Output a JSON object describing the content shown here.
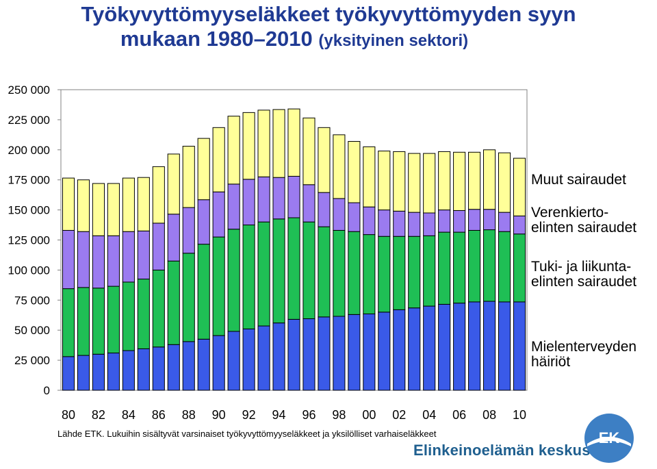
{
  "title": {
    "line1": "Työkyvyttömyyseläkkeet työkyvyttömyyden syyn",
    "line2_main": "mukaan 1980–2010",
    "line2_sub": "(yksityinen sektori)"
  },
  "colors": {
    "mental": "#3a5ae8",
    "musculo": "#1fbf55",
    "circulatory": "#9b7bf0",
    "other": "#ffff99",
    "title": "#1f3a93"
  },
  "chart_data": {
    "type": "bar",
    "stacked": true,
    "categories": [
      "80",
      "81",
      "82",
      "83",
      "84",
      "85",
      "86",
      "87",
      "88",
      "89",
      "90",
      "91",
      "92",
      "93",
      "94",
      "95",
      "96",
      "97",
      "98",
      "99",
      "00",
      "01",
      "02",
      "03",
      "04",
      "05",
      "06",
      "07",
      "08",
      "09",
      "10"
    ],
    "x_tick_labels": [
      "80",
      "82",
      "84",
      "86",
      "88",
      "90",
      "92",
      "94",
      "96",
      "98",
      "00",
      "02",
      "04",
      "06",
      "08",
      "10"
    ],
    "y_tick_labels": [
      "0",
      "25 000",
      "50 000",
      "75 000",
      "100 000",
      "125 000",
      "150 000",
      "175 000",
      "200 000",
      "225 000",
      "250 000"
    ],
    "ylim": [
      0,
      250000
    ],
    "grid": false,
    "legend_position": "right",
    "series": [
      {
        "name": "Mielenterveyden häiriöt",
        "key": "mental",
        "values": [
          28000,
          29000,
          30000,
          31000,
          33000,
          34500,
          36000,
          38000,
          40500,
          42500,
          45500,
          49000,
          51000,
          53500,
          56000,
          59000,
          59500,
          61000,
          61500,
          63000,
          63500,
          65000,
          67000,
          68500,
          70000,
          71500,
          72500,
          73500,
          74000,
          73500,
          73500
        ]
      },
      {
        "name": "Tuki- ja liikuntaelinten sairaudet",
        "key": "musculo",
        "values": [
          56500,
          56500,
          55000,
          55500,
          57000,
          58000,
          64000,
          69500,
          73500,
          79000,
          82000,
          85000,
          86500,
          86500,
          86500,
          84500,
          80500,
          75000,
          71500,
          69000,
          66000,
          63000,
          61000,
          59500,
          58500,
          60000,
          59000,
          59500,
          59500,
          58500,
          56500
        ]
      },
      {
        "name": "Verenkiertoelinten sairaudet",
        "key": "circulatory",
        "values": [
          48500,
          46500,
          43500,
          42000,
          42000,
          40000,
          39000,
          39000,
          38000,
          37000,
          37500,
          37500,
          38000,
          37500,
          34500,
          34500,
          31000,
          28500,
          26500,
          24000,
          23000,
          22000,
          21000,
          20000,
          19000,
          18500,
          18000,
          17500,
          17000,
          16000,
          15000
        ]
      },
      {
        "name": "Muut sairaudet",
        "key": "other",
        "values": [
          43500,
          43000,
          43500,
          43500,
          44500,
          44500,
          47000,
          50000,
          51000,
          51000,
          53500,
          56500,
          55500,
          55500,
          56500,
          56000,
          55500,
          54000,
          53000,
          51000,
          50000,
          49000,
          49500,
          49000,
          49500,
          48500,
          48500,
          47500,
          49500,
          49500,
          48000
        ]
      }
    ]
  },
  "legend": {
    "other": "Muut sairaudet",
    "circulatory": "Verenkierto-\nelinten sairaudet",
    "musculo": "Tuki- ja liikunta-\nelinten sairaudet",
    "mental": "Mielenterveyden\nhäiriöt"
  },
  "source": "Lähde ETK. Lukuihin sisältyvät varsinaiset työkyvyttömyyseläkkeet ja yksilölliset varhaiseläkkeet",
  "logo": {
    "org_name": "Elinkeinoelämän keskusliitto",
    "mark_text": "EK"
  }
}
